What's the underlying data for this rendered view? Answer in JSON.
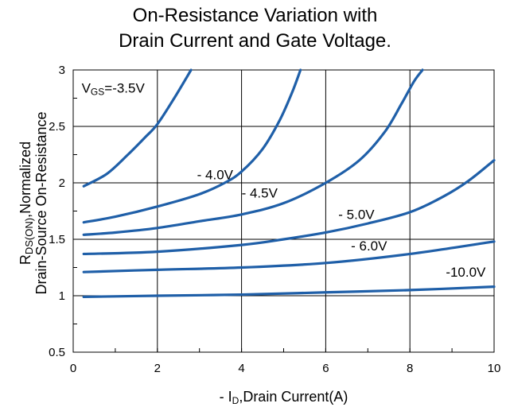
{
  "chart_data": {
    "type": "line",
    "title_lines": [
      "On-Resistance Variation with",
      "Drain Current and Gate Voltage."
    ],
    "xlabel": {
      "prefix": "- I",
      "sub": "D",
      "suffix": ",Drain Current(A)"
    },
    "ylabel": {
      "line1_main": "R",
      "line1_sub": "DS(ON)",
      "line1_suffix": ",Normalized",
      "line2": "Drain-Source On-Resistance"
    },
    "xlim": [
      0,
      10
    ],
    "ylim": [
      0.5,
      3
    ],
    "xticks": [
      0,
      2,
      4,
      6,
      8,
      10
    ],
    "yticks": [
      0.5,
      1,
      1.5,
      2,
      2.5,
      3
    ],
    "ytick_labels": [
      "0.5",
      "1",
      "1.5",
      "2",
      "2.5",
      "3"
    ],
    "grid": true,
    "line_color": "#1f5fa8",
    "series": [
      {
        "label": {
          "main": "V",
          "sub": "GS",
          "suffix": "=-3.5V"
        },
        "x": [
          0.25,
          0.8,
          1.3,
          1.7,
          2.0,
          2.4,
          2.8
        ],
        "y": [
          1.97,
          2.08,
          2.25,
          2.4,
          2.52,
          2.75,
          3.0
        ]
      },
      {
        "label": {
          "main": "- 4.0V",
          "sub": "",
          "suffix": ""
        },
        "x": [
          0.25,
          1.0,
          2.0,
          3.0,
          3.6,
          4.0,
          4.5,
          4.9,
          5.2,
          5.4
        ],
        "y": [
          1.65,
          1.7,
          1.79,
          1.9,
          2.0,
          2.1,
          2.3,
          2.55,
          2.8,
          3.0
        ]
      },
      {
        "label": {
          "main": "- 4.5V",
          "sub": "",
          "suffix": ""
        },
        "x": [
          0.25,
          1.0,
          2.0,
          3.0,
          4.0,
          5.0,
          6.0,
          6.8,
          7.4,
          7.8,
          8.1,
          8.3
        ],
        "y": [
          1.54,
          1.56,
          1.6,
          1.66,
          1.72,
          1.82,
          2.0,
          2.2,
          2.45,
          2.7,
          2.9,
          3.0
        ]
      },
      {
        "label": {
          "main": "- 5.0V",
          "sub": "",
          "suffix": ""
        },
        "x": [
          0.25,
          2.0,
          4.0,
          5.0,
          6.0,
          7.0,
          8.0,
          8.8,
          9.4,
          10.0
        ],
        "y": [
          1.37,
          1.39,
          1.45,
          1.5,
          1.56,
          1.64,
          1.74,
          1.88,
          2.02,
          2.2
        ]
      },
      {
        "label": {
          "main": "- 6.0V",
          "sub": "",
          "suffix": ""
        },
        "x": [
          0.25,
          2.0,
          4.0,
          6.0,
          8.0,
          10.0
        ],
        "y": [
          1.21,
          1.23,
          1.25,
          1.29,
          1.37,
          1.48
        ]
      },
      {
        "label": {
          "main": "-10.0V",
          "sub": "",
          "suffix": ""
        },
        "x": [
          0.25,
          2.0,
          4.0,
          6.0,
          8.0,
          10.0
        ],
        "y": [
          0.99,
          1.0,
          1.01,
          1.03,
          1.05,
          1.08
        ]
      }
    ]
  }
}
